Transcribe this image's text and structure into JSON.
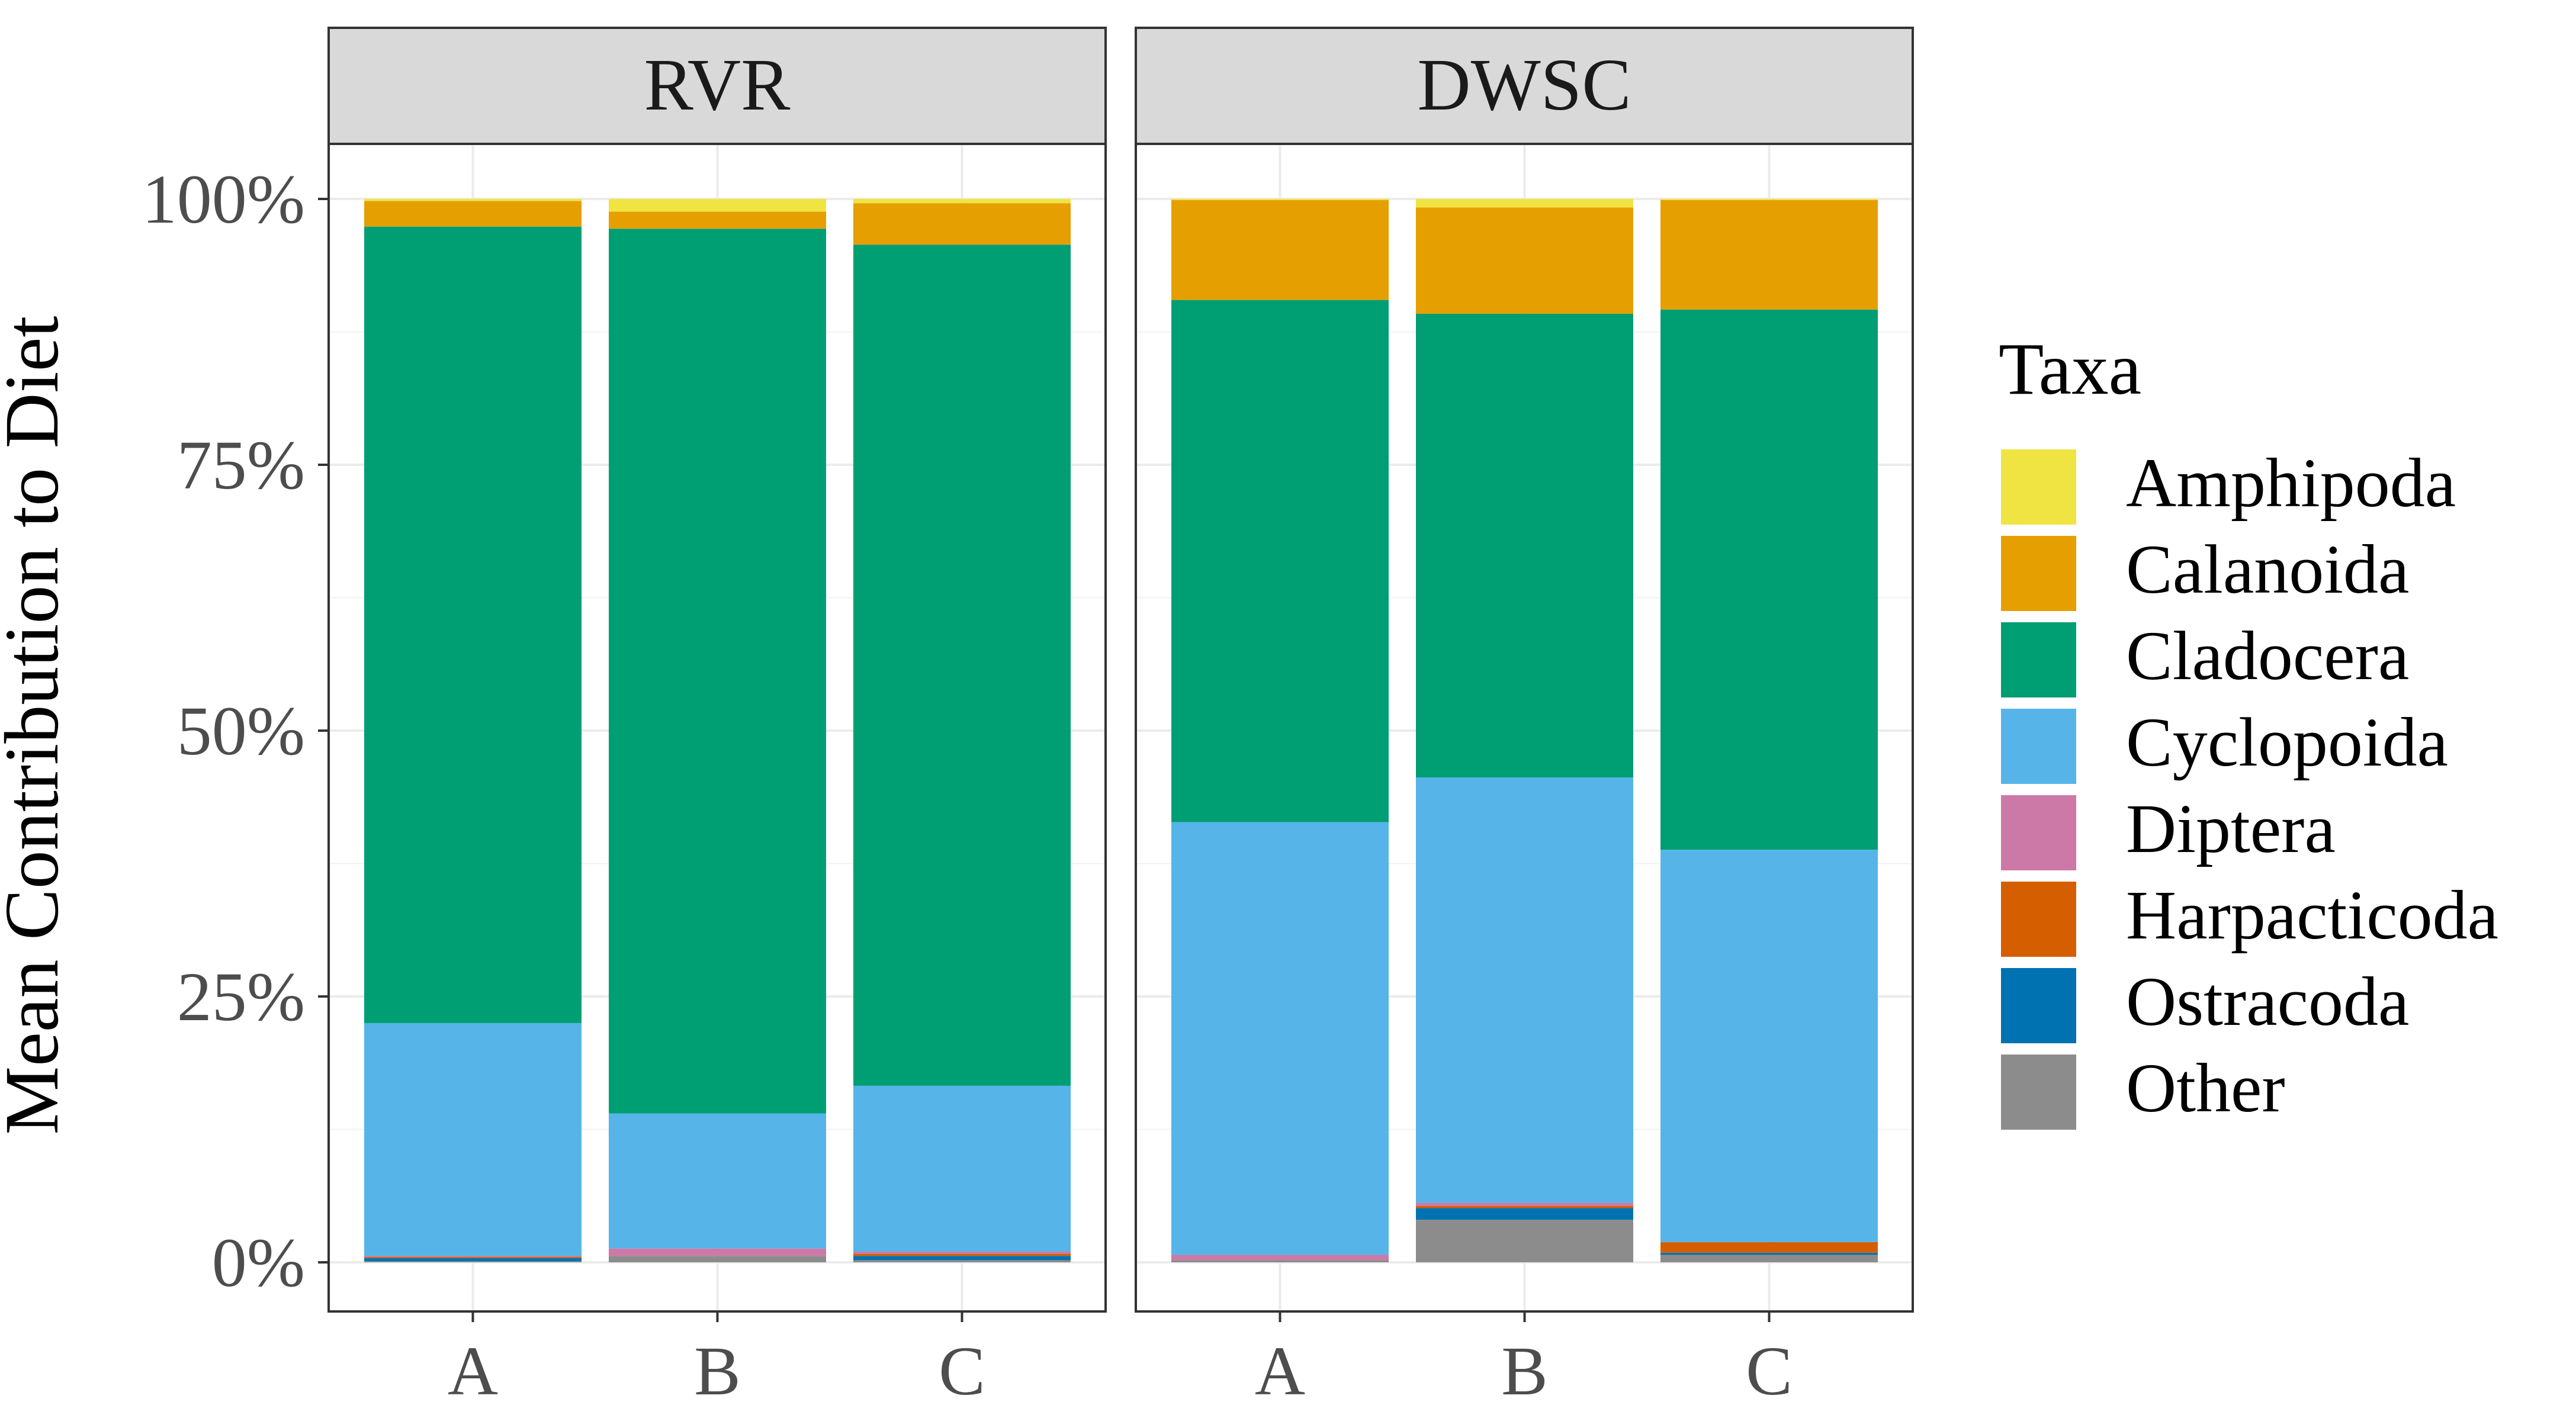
{
  "chart_data": {
    "type": "bar",
    "stacked": true,
    "percent_stacked": true,
    "title": "",
    "xlabel": "",
    "ylabel": "Mean Contribution to Diet",
    "ylim": [
      0,
      1
    ],
    "yticks": [
      0,
      0.25,
      0.5,
      0.75,
      1
    ],
    "ytick_labels": [
      "0%",
      "25%",
      "50%",
      "75%",
      "100%"
    ],
    "grid": true,
    "legend": {
      "title": "Taxa",
      "position": "right"
    },
    "categories": [
      "A",
      "B",
      "C"
    ],
    "taxa": [
      {
        "name": "Amphipoda",
        "color": "#F0E442"
      },
      {
        "name": "Calanoida",
        "color": "#E69F00"
      },
      {
        "name": "Cladocera",
        "color": "#009E73"
      },
      {
        "name": "Cyclopoida",
        "color": "#56B4E9"
      },
      {
        "name": "Diptera",
        "color": "#CC79A7"
      },
      {
        "name": "Harpacticoda",
        "color": "#D55E00"
      },
      {
        "name": "Ostracoda",
        "color": "#0072B2"
      },
      {
        "name": "Other",
        "color": "#8C8C8C"
      }
    ],
    "panels": [
      {
        "label": "RVR",
        "bars": [
          {
            "category": "A",
            "values": {
              "Other": 0.001,
              "Ostracoda": 0.003,
              "Harpacticoda": 0.001,
              "Diptera": 0.001,
              "Cyclopoida": 0.219,
              "Cladocera": 0.749,
              "Calanoida": 0.024,
              "Amphipoda": 0.002
            }
          },
          {
            "category": "B",
            "values": {
              "Other": 0.006,
              "Ostracoda": 0.0,
              "Harpacticoda": 0.0,
              "Diptera": 0.007,
              "Cyclopoida": 0.127,
              "Cladocera": 0.832,
              "Calanoida": 0.016,
              "Amphipoda": 0.012
            }
          },
          {
            "category": "C",
            "values": {
              "Other": 0.002,
              "Ostracoda": 0.004,
              "Harpacticoda": 0.002,
              "Diptera": 0.002,
              "Cyclopoida": 0.156,
              "Cladocera": 0.791,
              "Calanoida": 0.039,
              "Amphipoda": 0.004
            }
          }
        ]
      },
      {
        "label": "DWSC",
        "bars": [
          {
            "category": "A",
            "values": {
              "Other": 0.002,
              "Ostracoda": 0.0,
              "Harpacticoda": 0.0,
              "Diptera": 0.005,
              "Cyclopoida": 0.407,
              "Cladocera": 0.491,
              "Calanoida": 0.094,
              "Amphipoda": 0.001
            }
          },
          {
            "category": "B",
            "values": {
              "Other": 0.04,
              "Ostracoda": 0.011,
              "Harpacticoda": 0.002,
              "Diptera": 0.003,
              "Cyclopoida": 0.4,
              "Cladocera": 0.436,
              "Calanoida": 0.1,
              "Amphipoda": 0.008
            }
          },
          {
            "category": "C",
            "values": {
              "Other": 0.007,
              "Ostracoda": 0.002,
              "Harpacticoda": 0.01,
              "Diptera": 0.0,
              "Cyclopoida": 0.369,
              "Cladocera": 0.508,
              "Calanoida": 0.103,
              "Amphipoda": 0.001
            }
          }
        ]
      }
    ]
  }
}
